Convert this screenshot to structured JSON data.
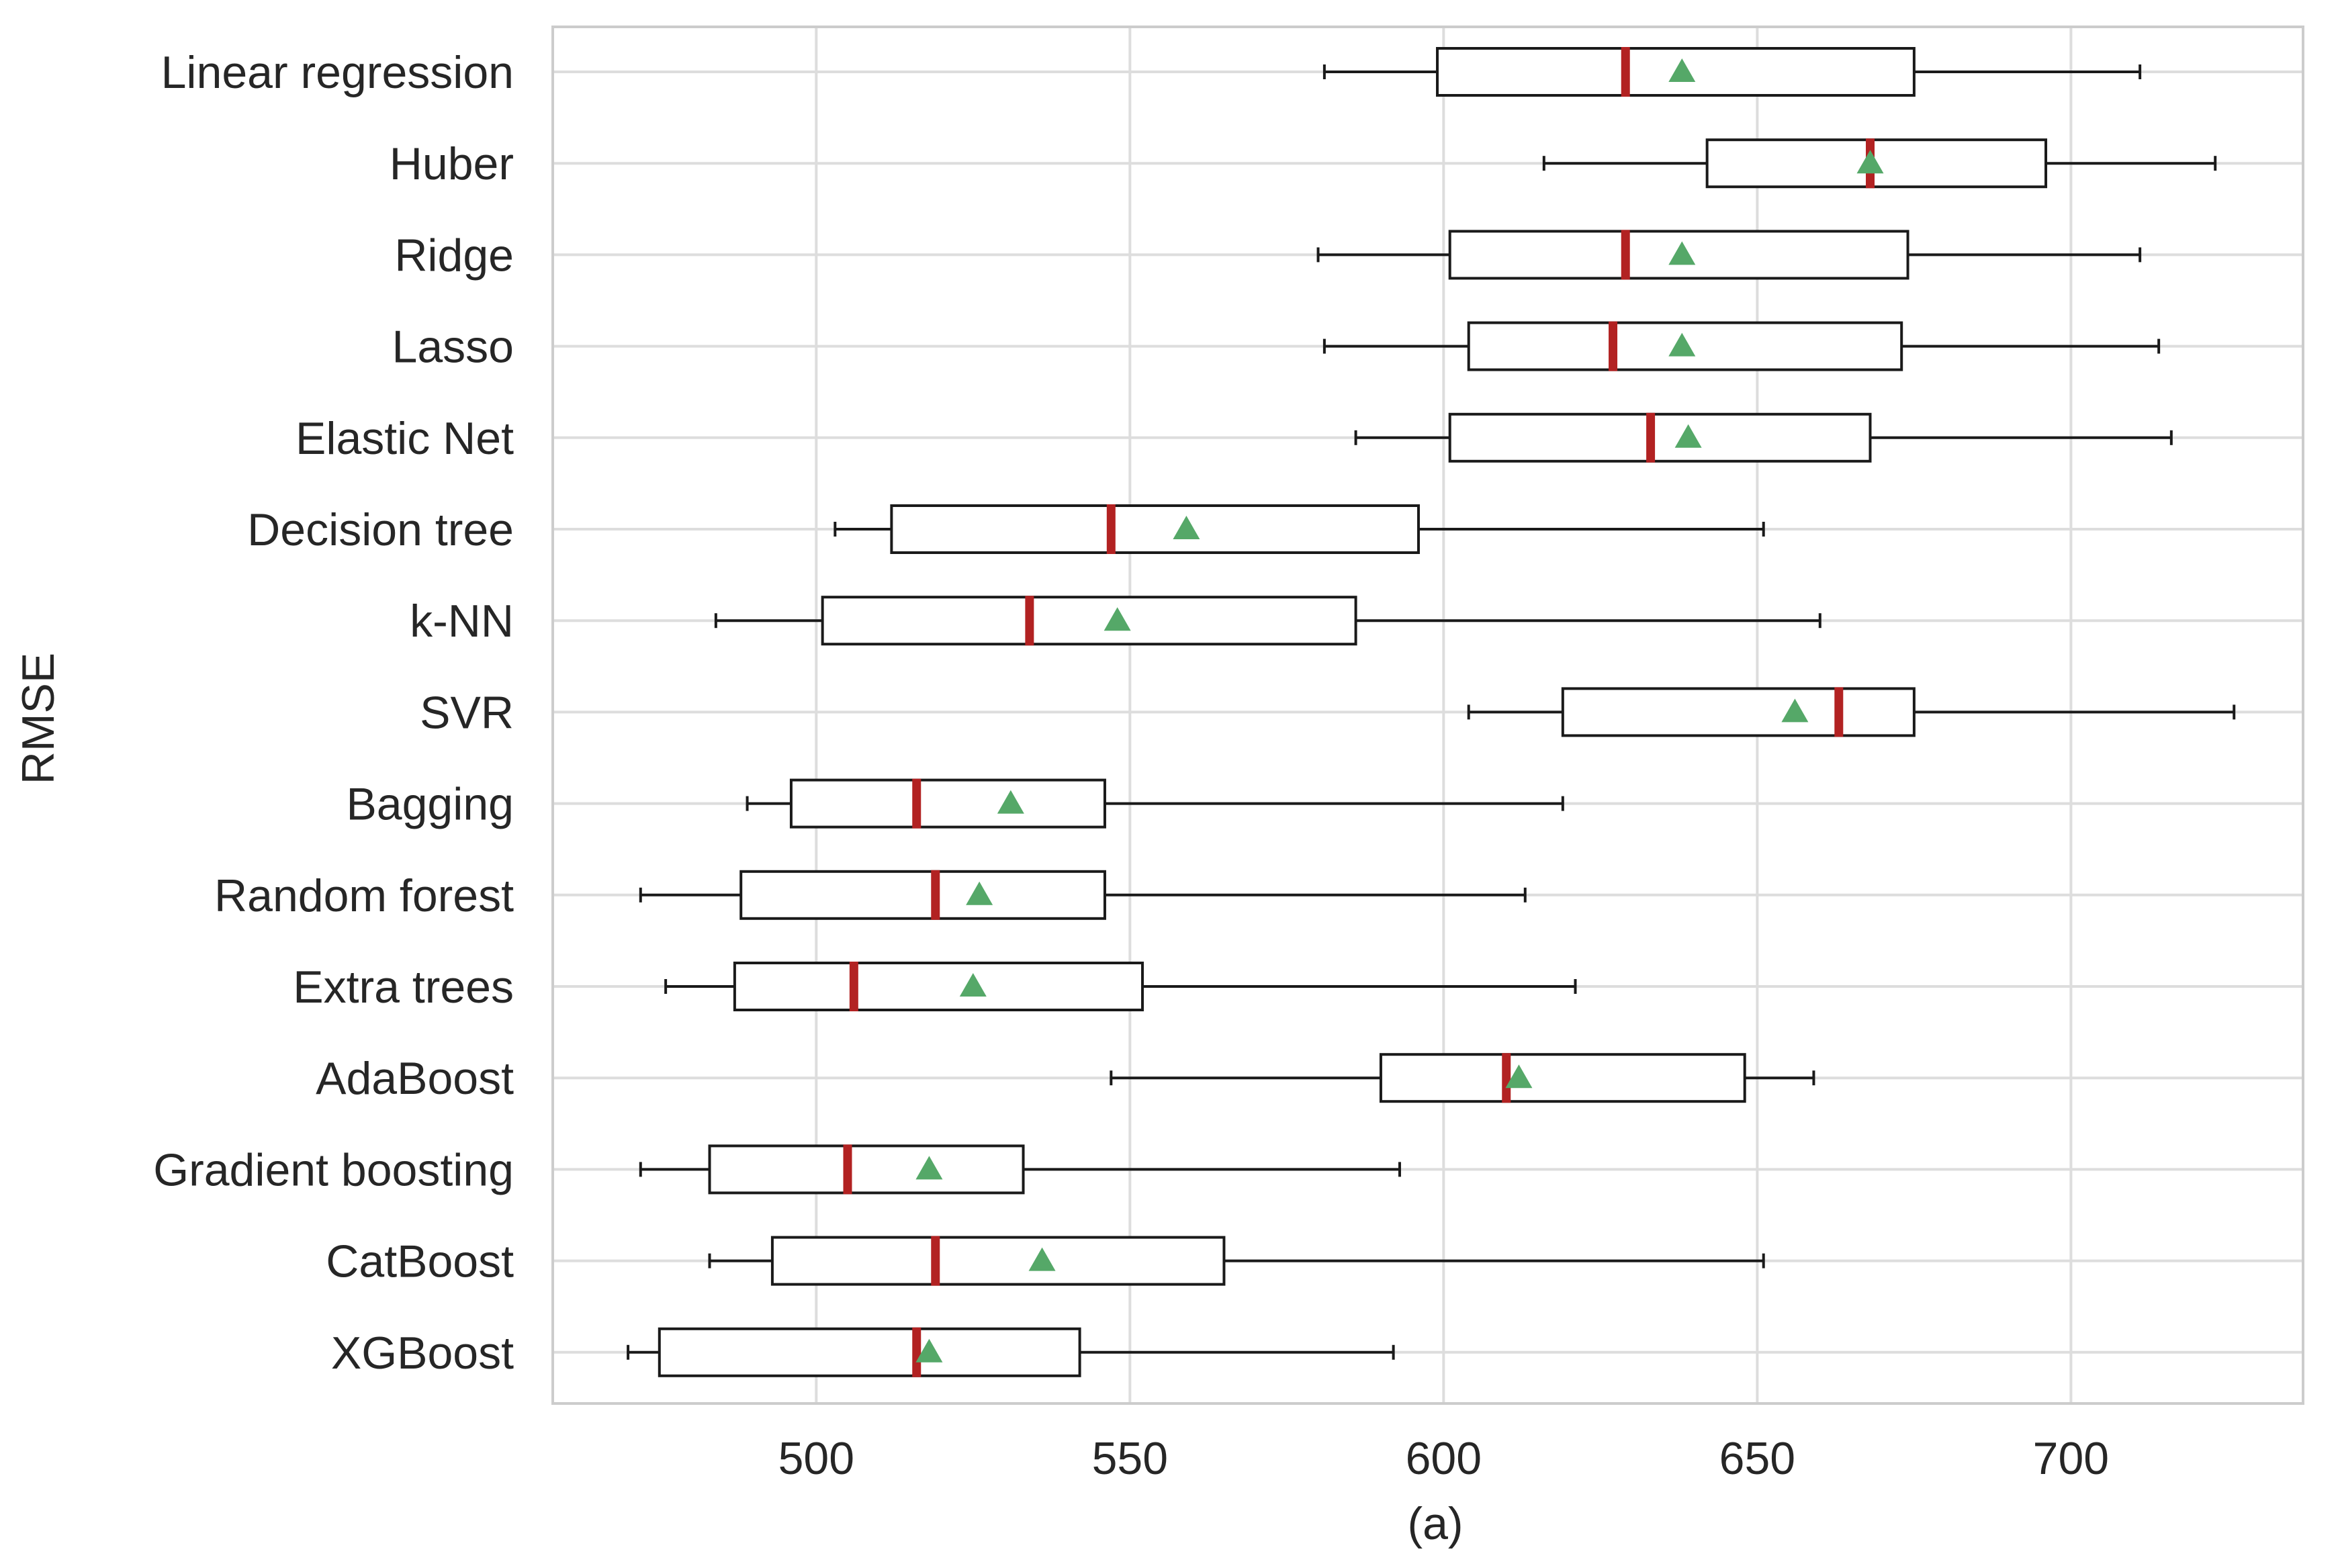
{
  "chart_data": {
    "type": "boxplot",
    "orientation": "horizontal",
    "title": "",
    "xlabel": "(a)",
    "ylabel": "RMSE",
    "xlim": [
      458,
      737
    ],
    "xticks": [
      500,
      550,
      600,
      650,
      700
    ],
    "xtick_labels": [
      "500",
      "550",
      "600",
      "650",
      "700"
    ],
    "grid": true,
    "colors": {
      "box_edge": "#1a1a1a",
      "median": "#b22222",
      "mean": "#55a868",
      "grid": "#dddddd",
      "text": "#262626"
    },
    "series": [
      {
        "name": "Linear regression",
        "whisker_low": 581,
        "q1": 599,
        "median": 629,
        "mean": 638,
        "q3": 675,
        "whisker_high": 711
      },
      {
        "name": "Huber",
        "whisker_low": 616,
        "q1": 642,
        "median": 668,
        "mean": 668,
        "q3": 696,
        "whisker_high": 723
      },
      {
        "name": "Ridge",
        "whisker_low": 580,
        "q1": 601,
        "median": 629,
        "mean": 638,
        "q3": 674,
        "whisker_high": 711
      },
      {
        "name": "Lasso",
        "whisker_low": 581,
        "q1": 604,
        "median": 627,
        "mean": 638,
        "q3": 673,
        "whisker_high": 714
      },
      {
        "name": "Elastic Net",
        "whisker_low": 586,
        "q1": 601,
        "median": 633,
        "mean": 639,
        "q3": 668,
        "whisker_high": 716
      },
      {
        "name": "Decision tree",
        "whisker_low": 503,
        "q1": 512,
        "median": 547,
        "mean": 559,
        "q3": 596,
        "whisker_high": 651
      },
      {
        "name": "k-NN",
        "whisker_low": 484,
        "q1": 501,
        "median": 534,
        "mean": 548,
        "q3": 586,
        "whisker_high": 660
      },
      {
        "name": "SVR",
        "whisker_low": 604,
        "q1": 619,
        "median": 663,
        "mean": 656,
        "q3": 675,
        "whisker_high": 726
      },
      {
        "name": "Bagging",
        "whisker_low": 489,
        "q1": 496,
        "median": 516,
        "mean": 531,
        "q3": 546,
        "whisker_high": 619
      },
      {
        "name": "Random forest",
        "whisker_low": 472,
        "q1": 488,
        "median": 519,
        "mean": 526,
        "q3": 546,
        "whisker_high": 613
      },
      {
        "name": "Extra trees",
        "whisker_low": 476,
        "q1": 487,
        "median": 506,
        "mean": 525,
        "q3": 552,
        "whisker_high": 621
      },
      {
        "name": "AdaBoost",
        "whisker_low": 547,
        "q1": 590,
        "median": 610,
        "mean": 612,
        "q3": 648,
        "whisker_high": 659
      },
      {
        "name": "Gradient boosting",
        "whisker_low": 472,
        "q1": 483,
        "median": 505,
        "mean": 518,
        "q3": 533,
        "whisker_high": 593
      },
      {
        "name": "CatBoost",
        "whisker_low": 483,
        "q1": 493,
        "median": 519,
        "mean": 536,
        "q3": 565,
        "whisker_high": 651
      },
      {
        "name": "XGBoost",
        "whisker_low": 470,
        "q1": 475,
        "median": 516,
        "mean": 518,
        "q3": 542,
        "whisker_high": 592
      }
    ]
  }
}
